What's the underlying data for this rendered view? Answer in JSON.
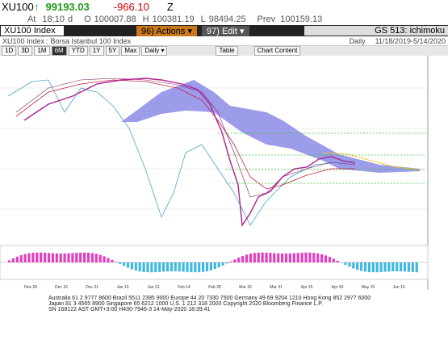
{
  "quote": {
    "ticker": "XU100",
    "arrow": "↑",
    "last": "99193.03",
    "change": "-966.10",
    "flag": "Z",
    "at_label": "At",
    "time": "18:10",
    "d": "d",
    "open_label": "O",
    "open": "100007.88",
    "high_label": "H",
    "high": "100381.19",
    "low_label": "L",
    "low": "98494.25",
    "prev_label": "Prev",
    "prev": "100159.13"
  },
  "command_bar": {
    "security": "XU100 Index",
    "actions": "96) Actions ▾",
    "edit": "97) Edit ▾",
    "function": "GS 513: ichimoku"
  },
  "title_bar": {
    "title": "XU100 Index : Borsa Istanbul 100 Index",
    "frequency": "Daily",
    "range": "11/18/2019-5/14/2020"
  },
  "toolbar": {
    "periods": [
      "1D",
      "3D",
      "1M",
      "6M",
      "YTD",
      "1Y",
      "5Y",
      "Max"
    ],
    "selected": "6M",
    "interval": "Daily ▾",
    "table": "Table",
    "content": "Chart Content"
  },
  "x_axis": [
    "Nov 29",
    "Dec 16",
    "Dec 31",
    "Jan 15",
    "Jan 31",
    "Feb 14",
    "Feb 28",
    "Mar 16",
    "Mar 31",
    "Apr 15",
    "Apr 30",
    "May 15",
    "Jun 15"
  ],
  "footer": [
    "Australia 61 2 9777 8600 Brazil 5511 2395 9000 Europe 44 20 7330 7500 Germany 49 69 9204 1210 Hong Kong 852 2977 6000",
    "Japan 81 3 4565 8900 Singapore 65 6212 1000 U.S. 1 212 318 2000 Copyright 2020 Bloomberg Finance L.P.",
    "SN 168122 AST GMT+3:00 H430-7946-3 14-May-2020 18:39:41"
  ]
}
